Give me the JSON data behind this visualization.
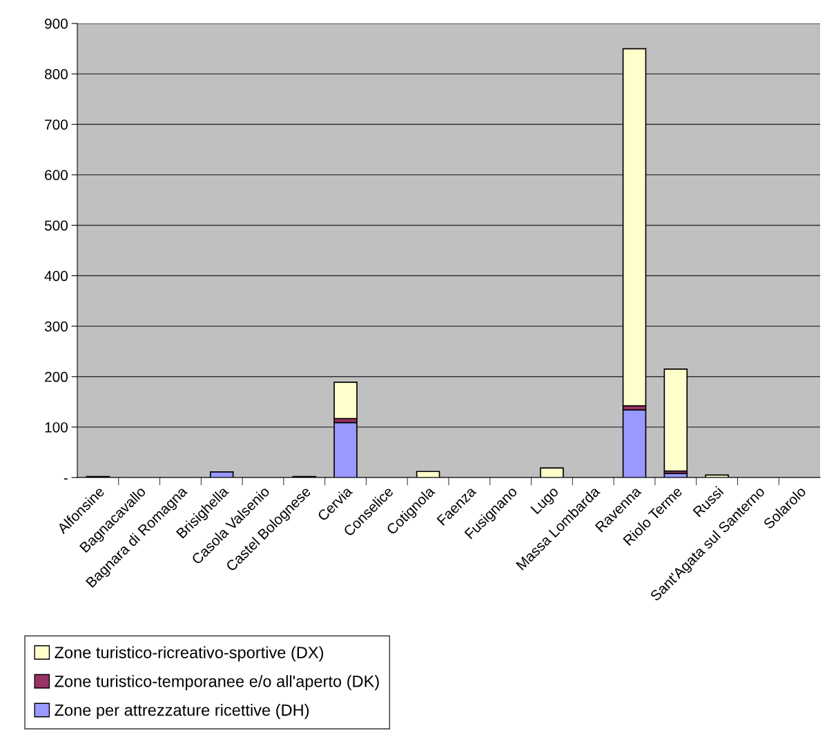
{
  "chart_data": {
    "type": "bar",
    "stacked": true,
    "categories": [
      "Alfonsine",
      "Bagnacavallo",
      "Bagnara di Romagna",
      "Brisighella",
      "Casola Valsenio",
      "Castel Bolognese",
      "Cervia",
      "Conselice",
      "Cotignola",
      "Faenza",
      "Fusignano",
      "Lugo",
      "Massa Lombarda",
      "Ravenna",
      "Riolo Terme",
      "Russi",
      "Sant'Agata sul Santerno",
      "Solarolo"
    ],
    "series": [
      {
        "name": "Zone per attrezzature ricettive (DH)",
        "color": "#9999ff",
        "values": [
          2,
          0,
          0,
          11,
          null,
          2,
          109,
          null,
          null,
          null,
          null,
          0,
          0,
          134,
          8,
          0,
          0,
          0
        ]
      },
      {
        "name": "Zone turistico-temporanee e/o all'aperto (DK)",
        "color": "#993366",
        "values": [
          0,
          0,
          0,
          0,
          0,
          0,
          8,
          0,
          0,
          0,
          0,
          0,
          0,
          8,
          5,
          0,
          0,
          0
        ]
      },
      {
        "name": "Zone turistico-ricreativo-sportive (DX)",
        "color": "#ffffcc",
        "values": [
          0,
          0,
          0,
          0,
          0,
          0,
          72,
          0,
          12,
          0,
          0,
          19,
          0,
          708,
          202,
          5,
          0,
          0
        ]
      }
    ],
    "ylim": [
      0,
      900
    ],
    "yticks": [
      {
        "value": 0,
        "label": "-"
      },
      100,
      200,
      300,
      400,
      500,
      600,
      700,
      800,
      900
    ],
    "grid": "y",
    "legend": "bottom left"
  }
}
